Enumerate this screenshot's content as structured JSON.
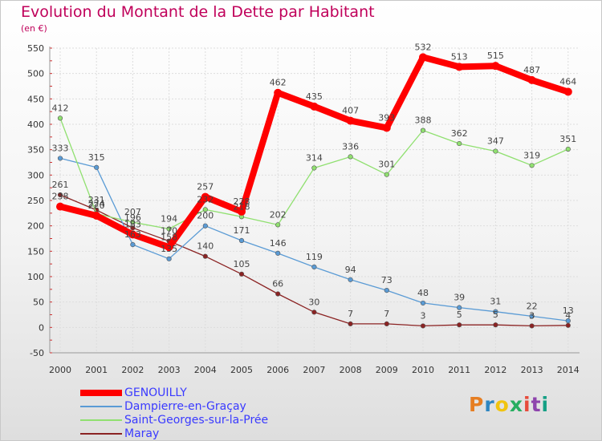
{
  "header": {
    "title": "Evolution du Montant de la Dette par Habitant",
    "subtitle": "(en €)"
  },
  "logo": {
    "text": "Proxiti",
    "colors": [
      "#e67e22",
      "#2e86c1",
      "#f1c40f",
      "#27ae60",
      "#e74c3c",
      "#8e44ad",
      "#16a085"
    ]
  },
  "chart_data": {
    "type": "line",
    "title": "Evolution du Montant de la Dette par Habitant",
    "ylabel": "(en €)",
    "xlabel": "",
    "x": [
      "2000",
      "2001",
      "2002",
      "2003",
      "2004",
      "2005",
      "2006",
      "2007",
      "2008",
      "2009",
      "2010",
      "2011",
      "2012",
      "2013",
      "2014"
    ],
    "ylim": [
      -50,
      550
    ],
    "yticks": [
      "-50",
      "0",
      "50",
      "100",
      "150",
      "200",
      "250",
      "300",
      "350",
      "400",
      "450",
      "500",
      "550"
    ],
    "grid": true,
    "legend_position": "bottom-left",
    "series": [
      {
        "name": "GENOUILLY",
        "color": "#ff0000",
        "values": [
          238,
          220,
          183,
          158,
          257,
          228,
          462,
          435,
          407,
          393,
          532,
          513,
          515,
          487,
          464
        ],
        "labels": [
          "238",
          "220",
          "183",
          "158",
          "257",
          "228",
          "462",
          "435",
          "407",
          "393",
          "532",
          "513",
          "515",
          "487",
          "464"
        ]
      },
      {
        "name": "Dampierre-en-Graçay",
        "color": "#5a9bd5",
        "values": [
          333,
          315,
          163,
          135,
          200,
          171,
          146,
          119,
          94,
          73,
          48,
          39,
          31,
          22,
          13
        ],
        "labels": [
          "333",
          "315",
          "163",
          "135",
          "200",
          "171",
          "146",
          "119",
          "94",
          "73",
          "48",
          "39",
          "31",
          "22",
          "13"
        ]
      },
      {
        "name": "Saint-Georges-sur-la-Prée",
        "color": "#90e070",
        "values": [
          412,
          224,
          207,
          194,
          232,
          218,
          202,
          314,
          336,
          301,
          388,
          362,
          347,
          319,
          351
        ],
        "labels": [
          "412",
          "224",
          "207",
          "194",
          "232",
          "218",
          "202",
          "314",
          "336",
          "301",
          "388",
          "362",
          "347",
          "319",
          "351"
        ]
      },
      {
        "name": "Maray",
        "color": "#8b2323",
        "values": [
          261,
          231,
          196,
          170,
          140,
          105,
          66,
          30,
          7,
          7,
          3,
          5,
          5,
          3,
          4
        ],
        "labels": [
          "261",
          "231",
          "196",
          "170",
          "140",
          "105",
          "66",
          "30",
          "7",
          "7",
          "3",
          "5",
          "5",
          "3",
          "4"
        ]
      }
    ]
  }
}
